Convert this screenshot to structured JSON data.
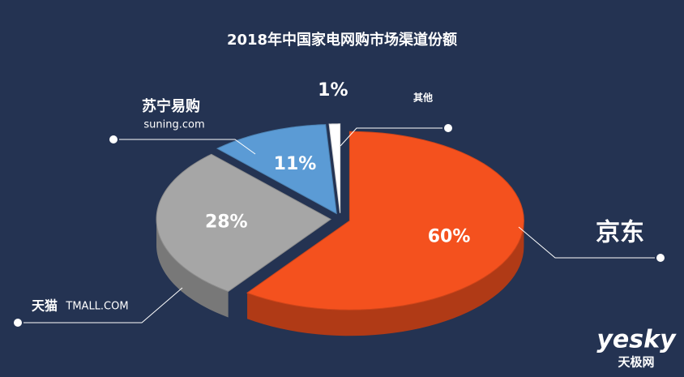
{
  "chart_data": {
    "type": "pie3d",
    "title": "2018年中国家电网购市场渠道份额",
    "categories": [
      "京东",
      "天猫",
      "苏宁易购",
      "其他"
    ],
    "values": [
      60,
      28,
      11,
      1
    ],
    "value_labels": [
      "60%",
      "28%",
      "11%",
      "1%"
    ],
    "colors": [
      "#f4511e",
      "#a6a6a6",
      "#5b9bd5",
      "#ffffff"
    ],
    "logo_subtexts": [
      "TMALL.COM",
      "suning.com"
    ],
    "watermark": [
      "yesky",
      "天极网"
    ]
  }
}
